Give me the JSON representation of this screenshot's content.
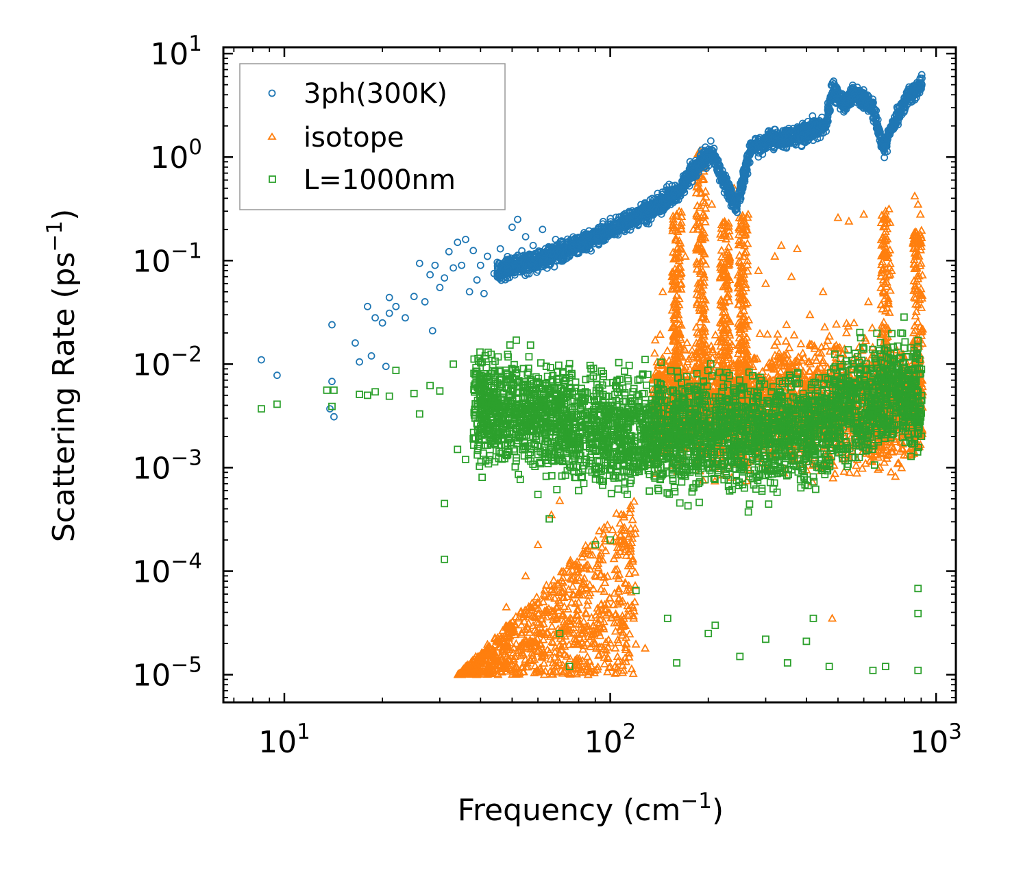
{
  "chart_data": {
    "type": "scatter",
    "title": "",
    "xlabel": {
      "base": "Frequency (cm",
      "sup": "−1",
      "close": ")"
    },
    "ylabel": {
      "base": "Scattering Rate (ps",
      "sup": "−1",
      "close": ")"
    },
    "x_scale": "log",
    "y_scale": "log",
    "xlim": [
      6.5,
      1150
    ],
    "ylim": [
      5.4e-06,
      11.5
    ],
    "x_ticks": [
      {
        "value": 10,
        "base": "10",
        "exp": "1"
      },
      {
        "value": 100,
        "base": "10",
        "exp": "2"
      },
      {
        "value": 1000,
        "base": "10",
        "exp": "3"
      }
    ],
    "y_ticks": [
      {
        "value": 10,
        "base": "10",
        "exp": "1"
      },
      {
        "value": 1,
        "base": "10",
        "exp": "0"
      },
      {
        "value": 0.1,
        "base": "10",
        "exp": "−1"
      },
      {
        "value": 0.01,
        "base": "10",
        "exp": "−2"
      },
      {
        "value": 0.001,
        "base": "10",
        "exp": "−3"
      },
      {
        "value": 0.0001,
        "base": "10",
        "exp": "−4"
      },
      {
        "value": 1e-05,
        "base": "10",
        "exp": "−5"
      }
    ],
    "legend": {
      "position": "top-left"
    },
    "series": [
      {
        "name": "3ph(300K)",
        "marker": "circle",
        "color": "#1f77b4",
        "points": [
          [
            8.5,
            0.011
          ],
          [
            9.5,
            0.0078
          ],
          [
            14,
            0.024
          ],
          [
            14,
            0.0068
          ],
          [
            13.8,
            0.0037
          ],
          [
            14.2,
            0.0031
          ],
          [
            16.5,
            0.016
          ],
          [
            17,
            0.0105
          ],
          [
            18,
            0.036
          ],
          [
            18.5,
            0.012
          ],
          [
            19,
            0.028
          ],
          [
            20,
            0.025
          ],
          [
            20.5,
            0.0095
          ],
          [
            21,
            0.044
          ],
          [
            21,
            0.031
          ],
          [
            22,
            0.036
          ],
          [
            23.5,
            0.028
          ],
          [
            25,
            0.045
          ],
          [
            26,
            0.094
          ],
          [
            27,
            0.04
          ],
          [
            28,
            0.073
          ],
          [
            28.5,
            0.021
          ],
          [
            29,
            0.09
          ],
          [
            30,
            0.055
          ],
          [
            31,
            0.068
          ],
          [
            32,
            0.122
          ],
          [
            33,
            0.085
          ],
          [
            34,
            0.15
          ],
          [
            35,
            0.09
          ],
          [
            36,
            0.16
          ],
          [
            37,
            0.05
          ],
          [
            38,
            0.125
          ],
          [
            39,
            0.065
          ],
          [
            40,
            0.09
          ],
          [
            41,
            0.048
          ],
          [
            42,
            0.11
          ],
          [
            44,
            0.075
          ],
          [
            46,
            0.13
          ],
          [
            48,
            0.1
          ],
          [
            50,
            0.21
          ],
          [
            52,
            0.25
          ],
          [
            55,
            0.17
          ],
          [
            58,
            0.14
          ],
          [
            60,
            0.09
          ],
          [
            62,
            0.2
          ],
          [
            65,
            0.13
          ],
          [
            68,
            0.16
          ]
        ],
        "trend": [
          [
            45,
            0.08
          ],
          [
            60,
            0.1
          ],
          [
            80,
            0.14
          ],
          [
            100,
            0.2
          ],
          [
            130,
            0.3
          ],
          [
            160,
            0.45
          ],
          [
            185,
            0.85
          ],
          [
            205,
            1.1
          ],
          [
            225,
            0.55
          ],
          [
            245,
            0.35
          ],
          [
            270,
            1.2
          ],
          [
            320,
            1.5
          ],
          [
            400,
            1.7
          ],
          [
            460,
            2.1
          ],
          [
            480,
            4.5
          ],
          [
            520,
            3.2
          ],
          [
            560,
            4.2
          ],
          [
            640,
            3.0
          ],
          [
            690,
            1.2
          ],
          [
            760,
            2.5
          ],
          [
            820,
            3.8
          ],
          [
            900,
            5.0
          ]
        ]
      },
      {
        "name": "isotope",
        "marker": "triangle",
        "color": "#ff7f0e",
        "points": [
          [
            35,
            1e-05
          ],
          [
            38,
            1.2e-05
          ],
          [
            42,
            1.8e-05
          ],
          [
            48,
            4.5e-05
          ],
          [
            55,
            9e-05
          ],
          [
            60,
            0.00018
          ],
          [
            66,
            0.00035
          ],
          [
            70,
            0.00048
          ],
          [
            75,
            2.5e-05
          ],
          [
            80,
            5e-05
          ],
          [
            90,
            2e-05
          ],
          [
            100,
            1.2e-05
          ],
          [
            110,
            1.1e-05
          ],
          [
            112,
            2e-05
          ],
          [
            118,
            3.5e-05
          ],
          [
            128,
            1.8e-05
          ],
          [
            136,
            0.007
          ],
          [
            145,
            0.05
          ],
          [
            160,
            0.28
          ],
          [
            170,
            0.11
          ],
          [
            180,
            0.2
          ],
          [
            192,
            1.15
          ],
          [
            205,
            0.35
          ],
          [
            218,
            0.18
          ],
          [
            240,
            0.5
          ],
          [
            240,
            0.42
          ],
          [
            265,
            0.28
          ],
          [
            285,
            0.08
          ],
          [
            300,
            0.06
          ],
          [
            320,
            0.11
          ],
          [
            335,
            0.14
          ],
          [
            360,
            0.07
          ],
          [
            375,
            0.13
          ],
          [
            410,
            0.03
          ],
          [
            450,
            0.05
          ],
          [
            470,
            0.0013
          ],
          [
            480,
            3.5e-05
          ],
          [
            500,
            0.26
          ],
          [
            540,
            0.24
          ],
          [
            560,
            0.025
          ],
          [
            600,
            0.28
          ],
          [
            620,
            0.04
          ],
          [
            700,
            0.3
          ],
          [
            730,
            0.08
          ],
          [
            860,
            0.42
          ],
          [
            880,
            0.35
          ],
          [
            890,
            0.15
          ],
          [
            895,
            0.28
          ]
        ],
        "bands": [
          {
            "x": 190,
            "lo": 0.006,
            "hi": 1.15
          },
          {
            "x": 160,
            "lo": 0.004,
            "hi": 0.3
          },
          {
            "x": 225,
            "lo": 0.004,
            "hi": 0.25
          },
          {
            "x": 255,
            "lo": 0.004,
            "hi": 0.3
          },
          {
            "x": 700,
            "lo": 0.002,
            "hi": 0.33
          },
          {
            "x": 880,
            "lo": 0.002,
            "hi": 0.2
          }
        ]
      },
      {
        "name": "L=1000nm",
        "marker": "square",
        "color": "#2ca02c",
        "points": [
          [
            8.5,
            0.0037
          ],
          [
            9.5,
            0.0041
          ],
          [
            13.5,
            0.0056
          ],
          [
            14.2,
            0.0056
          ],
          [
            14,
            0.0039
          ],
          [
            17,
            0.0051
          ],
          [
            18,
            0.005
          ],
          [
            19,
            0.0054
          ],
          [
            21,
            0.0049
          ],
          [
            22,
            0.0087
          ],
          [
            25,
            0.0052
          ],
          [
            26,
            0.0033
          ],
          [
            28,
            0.0062
          ],
          [
            30,
            0.0055
          ],
          [
            33,
            0.01
          ],
          [
            34,
            0.0015
          ],
          [
            36,
            0.0012
          ],
          [
            31,
            0.00045
          ],
          [
            31,
            0.00013
          ],
          [
            38,
            0.0019
          ],
          [
            42,
            0.0024
          ],
          [
            45,
            0.0021
          ],
          [
            50,
            0.0074
          ],
          [
            55,
            0.0016
          ],
          [
            60,
            0.00055
          ],
          [
            65,
            0.00032
          ],
          [
            70,
            2.5e-05
          ],
          [
            75,
            1.2e-05
          ],
          [
            80,
            0.0006
          ],
          [
            90,
            0.00018
          ],
          [
            100,
            0.0002
          ],
          [
            120,
            6.5e-05
          ],
          [
            150,
            3.5e-05
          ],
          [
            160,
            1.3e-05
          ],
          [
            200,
            2.5e-05
          ],
          [
            210,
            3e-05
          ],
          [
            250,
            1.5e-05
          ],
          [
            300,
            2.2e-05
          ],
          [
            350,
            1.3e-05
          ],
          [
            400,
            2.1e-05
          ],
          [
            420,
            3.5e-05
          ],
          [
            470,
            1.2e-05
          ],
          [
            640,
            1.1e-05
          ],
          [
            700,
            1.2e-05
          ],
          [
            880,
            1.1e-05
          ],
          [
            880,
            3.9e-05
          ],
          [
            880,
            6.8e-05
          ],
          [
            600,
            0.014
          ],
          [
            650,
            0.0125
          ],
          [
            740,
            0.011
          ],
          [
            770,
            0.0088
          ]
        ],
        "trend": [
          [
            38,
            0.004
          ],
          [
            60,
            0.0032
          ],
          [
            90,
            0.0024
          ],
          [
            140,
            0.0022
          ],
          [
            200,
            0.0021
          ],
          [
            300,
            0.0022
          ],
          [
            420,
            0.0024
          ],
          [
            560,
            0.004
          ],
          [
            650,
            0.0045
          ],
          [
            750,
            0.006
          ],
          [
            880,
            0.0045
          ]
        ]
      }
    ]
  }
}
